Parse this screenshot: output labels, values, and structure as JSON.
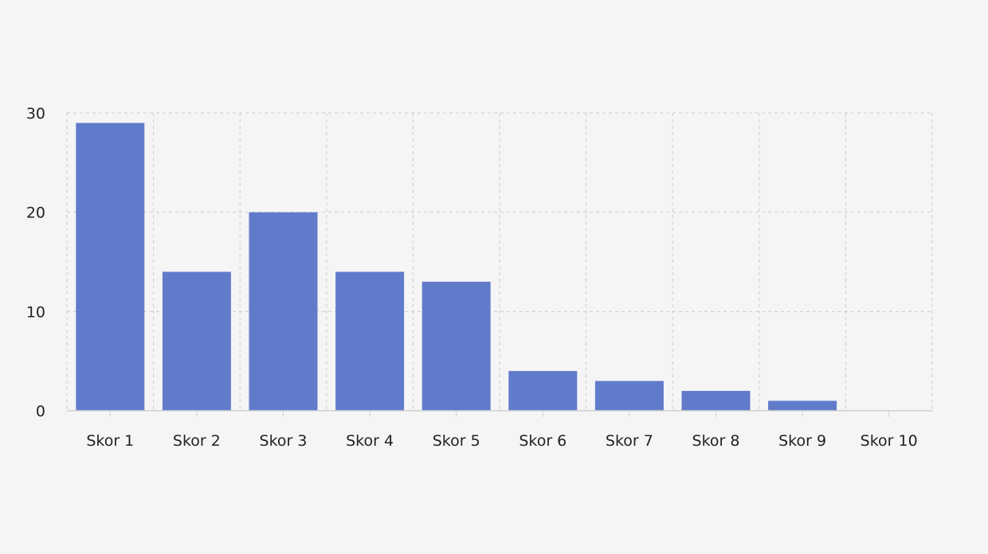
{
  "chart_data": {
    "type": "bar",
    "categories": [
      "Skor 1",
      "Skor 2",
      "Skor 3",
      "Skor 4",
      "Skor 5",
      "Skor 6",
      "Skor 7",
      "Skor 8",
      "Skor 9",
      "Skor 10"
    ],
    "values": [
      29,
      14,
      20,
      14,
      13,
      4,
      3,
      2,
      1,
      0
    ],
    "ylim": [
      0,
      30
    ],
    "yticks": [
      0,
      10,
      20,
      30
    ],
    "grid": true,
    "bar_color": "#617bcb",
    "grid_color": "#cccccc",
    "axis_color": "#d0d0d0"
  }
}
